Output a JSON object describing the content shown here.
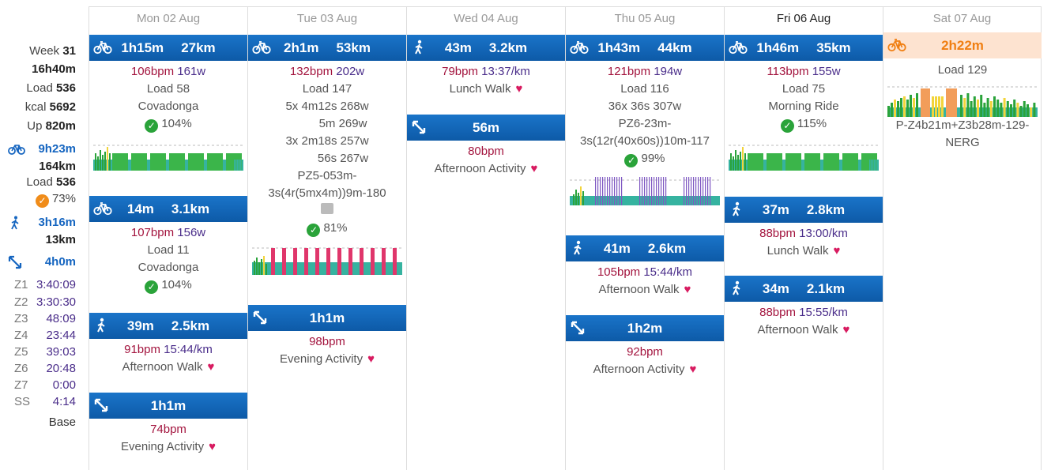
{
  "summary": {
    "week_label": "Week",
    "week": "31",
    "total_time": "16h40m",
    "load_label": "Load",
    "load": "536",
    "kcal_label": "kcal",
    "kcal": "5692",
    "up_label": "Up",
    "up": "820m",
    "ride": {
      "time": "9h23m",
      "dist": "164km",
      "load_label": "Load",
      "load": "536",
      "pct": "73%"
    },
    "walk": {
      "time": "3h16m",
      "dist": "13km"
    },
    "other": {
      "time": "4h0m"
    },
    "zones": [
      {
        "k": "Z1",
        "v": "3:40:09"
      },
      {
        "k": "Z2",
        "v": "3:30:30"
      },
      {
        "k": "Z3",
        "v": "48:09"
      },
      {
        "k": "Z4",
        "v": "23:44"
      },
      {
        "k": "Z5",
        "v": "39:03"
      },
      {
        "k": "Z6",
        "v": "20:48"
      },
      {
        "k": "Z7",
        "v": "0:00"
      },
      {
        "k": "SS",
        "v": "4:14"
      }
    ],
    "base": "Base"
  },
  "days": [
    "Mon 02 Aug",
    "Tue 03 Aug",
    "Wed 04 Aug",
    "Thu 05 Aug",
    "Fri 06 Aug",
    "Sat 07 Aug"
  ],
  "mon": [
    {
      "t": "1h15m",
      "d": "27km",
      "hr": "106bpm",
      "pw": "161w",
      "load": "Load 58",
      "name": "Covadonga",
      "pct": "104%"
    },
    {
      "t": "14m",
      "d": "3.1km",
      "hr": "107bpm",
      "pw": "156w",
      "load": "Load 11",
      "name": "Covadonga",
      "pct": "104%"
    },
    {
      "t": "39m",
      "d": "2.5km",
      "hr": "91bpm",
      "pw": "15:44/km",
      "name": "Afternoon Walk"
    },
    {
      "t": "1h1m",
      "hr": "74bpm",
      "name": "Evening Activity"
    }
  ],
  "tue": [
    {
      "t": "2h1m",
      "d": "53km",
      "hr": "132bpm",
      "pw": "202w",
      "load": "Load 147",
      "intervals": [
        "5x 4m12s 268w",
        "5m 269w",
        "3x 2m18s 257w",
        "56s 267w"
      ],
      "code1": "PZ5-053m-",
      "code2": "3s(4r(5mx4m))9m-180",
      "pct": "81%"
    },
    {
      "t": "1h1m",
      "hr": "98bpm",
      "name": "Evening Activity"
    }
  ],
  "wed": [
    {
      "t": "43m",
      "d": "3.2km",
      "hr": "79bpm",
      "pw": "13:37/km",
      "name": "Lunch Walk"
    },
    {
      "t": "56m",
      "hr": "80bpm",
      "name": "Afternoon Activity"
    }
  ],
  "thu": [
    {
      "t": "1h43m",
      "d": "44km",
      "hr": "121bpm",
      "pw": "194w",
      "load": "Load 116",
      "interval": "36x 36s 307w",
      "code1": "PZ6-23m-",
      "code2": "3s(12r(40x60s))10m-117",
      "pct": "99%"
    },
    {
      "t": "41m",
      "d": "2.6km",
      "hr": "105bpm",
      "pw": "15:44/km",
      "name": "Afternoon Walk"
    },
    {
      "t": "1h2m",
      "hr": "92bpm",
      "name": "Afternoon Activity"
    }
  ],
  "fri": [
    {
      "t": "1h46m",
      "d": "35km",
      "hr": "113bpm",
      "pw": "155w",
      "load": "Load 75",
      "name": "Morning Ride",
      "pct": "115%"
    },
    {
      "t": "37m",
      "d": "2.8km",
      "hr": "88bpm",
      "pw": "13:00/km",
      "name": "Lunch Walk"
    },
    {
      "t": "34m",
      "d": "2.1km",
      "hr": "88bpm",
      "pw": "15:55/km",
      "name": "Afternoon Walk"
    }
  ],
  "sat": [
    {
      "t": "2h22m",
      "load": "Load 129",
      "code1": "P-Z4b21m+Z3b28m-129-",
      "code2": "NERG"
    }
  ]
}
